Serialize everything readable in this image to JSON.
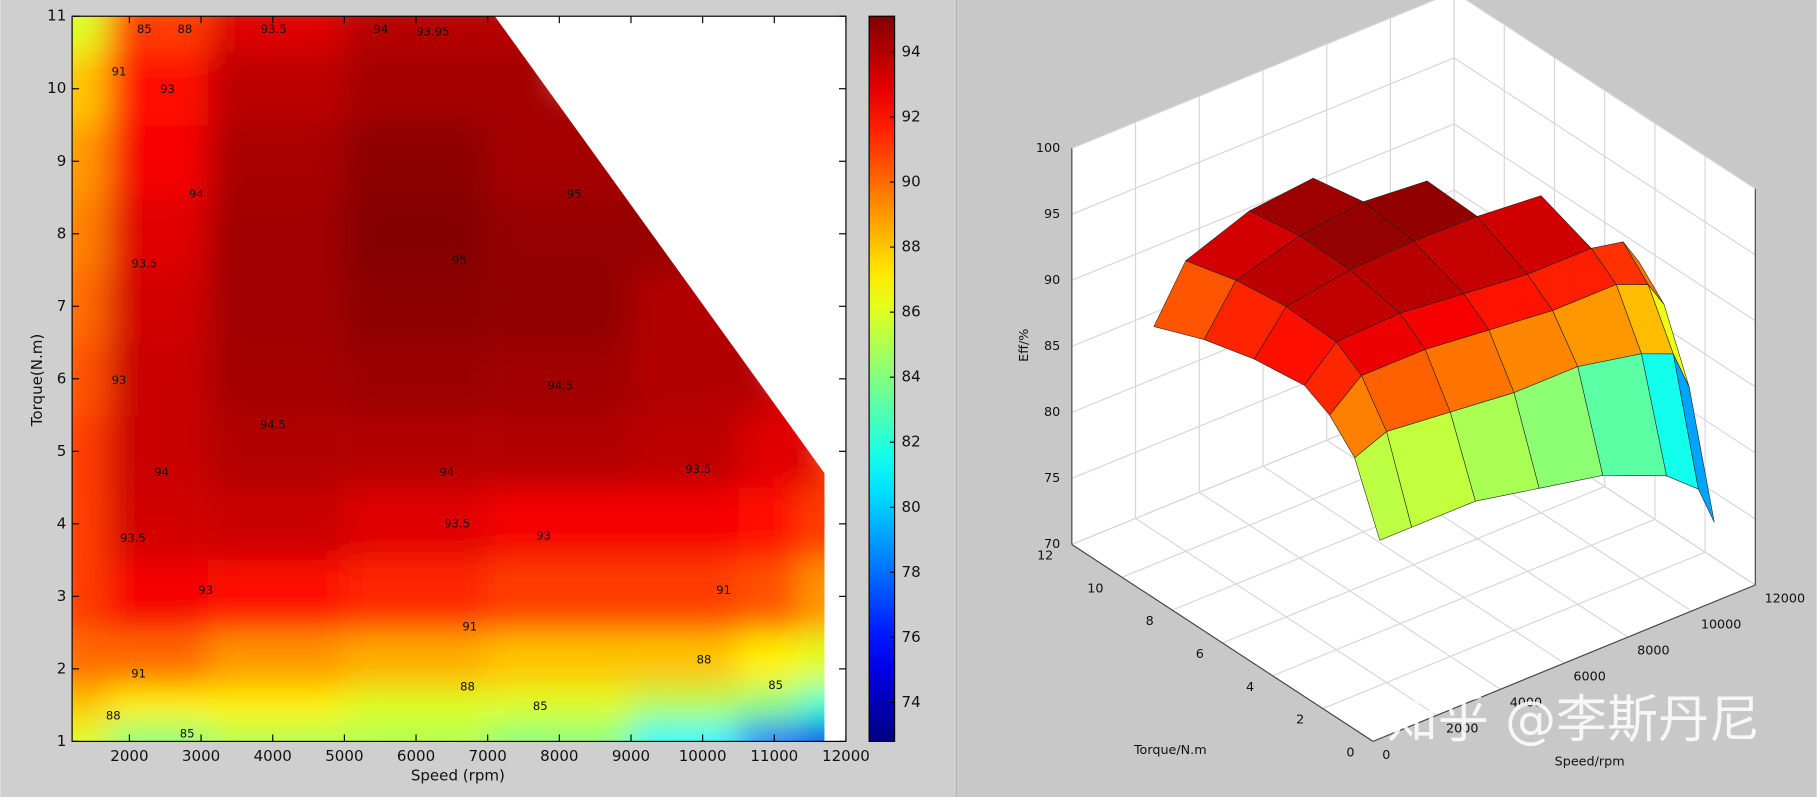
{
  "chart_data": [
    {
      "type": "contourf",
      "xlabel": "Speed (rpm)",
      "ylabel": "Torque(N.m)",
      "x": [
        1200,
        2200,
        4000,
        6000,
        8000,
        10000,
        11000,
        11700
      ],
      "y": [
        1,
        1.5,
        2,
        3,
        4,
        5,
        6,
        7,
        8,
        9,
        10,
        11
      ],
      "z": [
        [
          86,
          84,
          85,
          85,
          84,
          81,
          78,
          75
        ],
        [
          88,
          87,
          87,
          86,
          86,
          85,
          84,
          82
        ],
        [
          90,
          90,
          89,
          88.5,
          88,
          88,
          87,
          86
        ],
        [
          91,
          92.5,
          92,
          91.5,
          91,
          91,
          90.5,
          89
        ],
        [
          91,
          93.3,
          93.5,
          93,
          92.5,
          92.5,
          92,
          91
        ],
        [
          91,
          93.5,
          94,
          94,
          94,
          93.8,
          93,
          null
        ],
        [
          90.5,
          93.5,
          94.3,
          94.5,
          94.4,
          94,
          null,
          null
        ],
        [
          90,
          93.3,
          94.4,
          94.8,
          94.7,
          94,
          null,
          null
        ],
        [
          89.5,
          93,
          94.4,
          95,
          94.6,
          null,
          null,
          null
        ],
        [
          89,
          92.5,
          94.2,
          94.8,
          94.3,
          null,
          null,
          null
        ],
        [
          88,
          92,
          93.8,
          94.3,
          null,
          null,
          null,
          null
        ],
        [
          86,
          91,
          93,
          93.9,
          null,
          null,
          null,
          null
        ]
      ],
      "max_torque_curve": {
        "speed": [
          1200,
          7100,
          11700
        ],
        "torque": [
          11,
          11,
          4.7
        ]
      },
      "xlim": [
        1200,
        12000
      ],
      "xticks": [
        2000,
        3000,
        4000,
        5000,
        6000,
        7000,
        8000,
        9000,
        10000,
        11000,
        12000
      ],
      "ylim": [
        1,
        11
      ],
      "yticks": [
        1,
        2,
        3,
        4,
        5,
        6,
        7,
        8,
        9,
        10,
        11
      ],
      "colormap": "jet",
      "colorbar": {
        "lim": [
          72.8,
          95.1
        ],
        "ticks": [
          74,
          76,
          78,
          80,
          82,
          84,
          86,
          88,
          90,
          92,
          94
        ]
      },
      "contour_labels": [
        {
          "text": "85",
          "x": 2209,
          "y": 10.82
        },
        {
          "text": "88",
          "x": 2773,
          "y": 10.82
        },
        {
          "text": "93.5",
          "x": 4013,
          "y": 10.82
        },
        {
          "text": "94",
          "x": 5510,
          "y": 10.82
        },
        {
          "text": "93.95",
          "x": 6235,
          "y": 10.78
        },
        {
          "text": "91",
          "x": 1855,
          "y": 10.23
        },
        {
          "text": "93",
          "x": 2531,
          "y": 9.99
        },
        {
          "text": "94",
          "x": 2934,
          "y": 8.54
        },
        {
          "text": "93.5",
          "x": 2209,
          "y": 7.58
        },
        {
          "text": "93",
          "x": 1855,
          "y": 5.98
        },
        {
          "text": "94.5",
          "x": 4000,
          "y": 5.36
        },
        {
          "text": "94.5",
          "x": 8013,
          "y": 5.9
        },
        {
          "text": "95",
          "x": 6605,
          "y": 7.63
        },
        {
          "text": "95",
          "x": 8208,
          "y": 8.54
        },
        {
          "text": "94",
          "x": 2450,
          "y": 4.71
        },
        {
          "text": "94",
          "x": 6428,
          "y": 4.71
        },
        {
          "text": "93.5",
          "x": 9938,
          "y": 4.75
        },
        {
          "text": "93.5",
          "x": 6573,
          "y": 4.0
        },
        {
          "text": "93",
          "x": 7780,
          "y": 3.83
        },
        {
          "text": "93.5",
          "x": 2048,
          "y": 3.8
        },
        {
          "text": "93",
          "x": 3063,
          "y": 3.08
        },
        {
          "text": "91",
          "x": 6750,
          "y": 2.58
        },
        {
          "text": "91",
          "x": 10293,
          "y": 3.08
        },
        {
          "text": "91",
          "x": 2129,
          "y": 1.93
        },
        {
          "text": "88",
          "x": 6718,
          "y": 1.75
        },
        {
          "text": "88",
          "x": 10019,
          "y": 2.12
        },
        {
          "text": "85",
          "x": 7733,
          "y": 1.48
        },
        {
          "text": "85",
          "x": 11018,
          "y": 1.77
        },
        {
          "text": "88",
          "x": 1774,
          "y": 1.35
        },
        {
          "text": "85",
          "x": 2805,
          "y": 1.1
        }
      ]
    },
    {
      "type": "surface",
      "xlabel": "Torque/N.m",
      "ylabel": "Speed/rpm",
      "zlabel": "Eff/%",
      "torque": [
        1,
        2,
        3,
        4,
        6,
        8,
        10
      ],
      "speed": [
        1000,
        2000,
        4000,
        6000,
        8000,
        10000,
        11000,
        11500
      ],
      "z": [
        [
          83,
          83,
          83,
          82,
          81,
          79,
          77,
          74
        ],
        [
          88,
          89,
          88.5,
          88,
          88,
          87,
          86,
          83
        ],
        [
          90,
          92,
          92,
          91.5,
          91,
          91,
          90,
          88
        ],
        [
          91,
          93.3,
          93.5,
          93,
          92.5,
          92.5,
          92,
          90
        ],
        [
          90.5,
          93.5,
          94.3,
          94.5,
          94.4,
          94,
          null,
          null
        ],
        [
          89.5,
          93,
          94.4,
          95,
          94.6,
          null,
          null,
          null
        ],
        [
          88,
          92,
          93.8,
          94.3,
          null,
          null,
          null,
          null
        ]
      ],
      "xlim": [
        0,
        12
      ],
      "xticks": [
        0,
        2,
        4,
        6,
        8,
        10,
        12
      ],
      "ylim": [
        0,
        12000
      ],
      "yticks": [
        0,
        2000,
        4000,
        6000,
        8000,
        10000,
        12000
      ],
      "zlim": [
        70,
        100
      ],
      "zticks": [
        70,
        75,
        80,
        85,
        90,
        95,
        100
      ],
      "colormap": "jet"
    }
  ],
  "watermark": "知乎 @李斯丹尼"
}
